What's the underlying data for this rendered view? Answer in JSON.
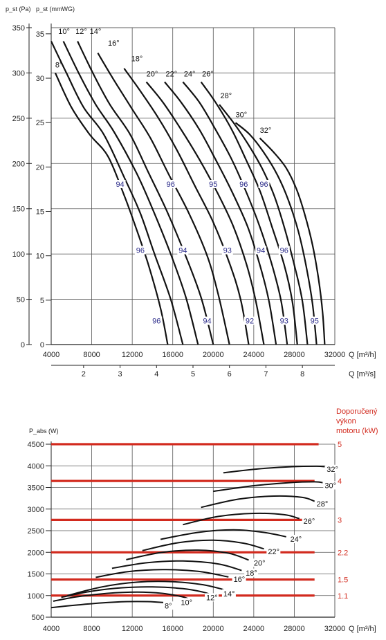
{
  "chart_data": [
    {
      "type": "line",
      "y_units": {
        "pa_label": "p_st (Pa)",
        "mmwg_label": "p_st (mmWG)"
      },
      "xlabel": "Q [m³/h]",
      "xlabel2": "Q [m³/s]",
      "x_ticks": [
        4000,
        8000,
        12000,
        16000,
        20000,
        24000,
        28000,
        32000
      ],
      "x2_ticks": [
        2,
        3,
        4,
        5,
        6,
        7,
        8
      ],
      "ylim_pa": [
        0,
        350
      ],
      "y_ticks_pa": [
        0,
        50,
        100,
        150,
        200,
        250,
        300,
        350
      ],
      "y_ticks_mmwg": [
        0,
        5,
        10,
        15,
        20,
        25,
        30,
        35
      ],
      "xlim": [
        4000,
        32000
      ],
      "grid": true,
      "series": [
        {
          "name": "8°",
          "x": [
            4400,
            6000,
            7800,
            9600,
            11200,
            12400,
            13600,
            14800,
            15500
          ],
          "y": [
            300,
            262,
            232,
            208,
            165,
            128,
            88,
            40,
            0
          ]
        },
        {
          "name": "10°",
          "x": [
            4000,
            5500,
            7200,
            9200,
            11200,
            12800,
            14200,
            15800,
            17000
          ],
          "y": [
            335,
            300,
            262,
            232,
            185,
            145,
            100,
            50,
            0
          ]
        },
        {
          "name": "12°",
          "x": [
            5200,
            6800,
            8400,
            10200,
            12400,
            14000,
            15800,
            17300,
            18500
          ],
          "y": [
            335,
            298,
            265,
            235,
            190,
            150,
            100,
            52,
            0
          ]
        },
        {
          "name": "14°",
          "x": [
            6600,
            8200,
            9800,
            11800,
            13600,
            15400,
            17200,
            18800,
            20000
          ],
          "y": [
            335,
            298,
            265,
            232,
            190,
            148,
            100,
            52,
            0
          ]
        },
        {
          "name": "16°",
          "x": [
            8600,
            10200,
            12000,
            13800,
            15600,
            17600,
            19400,
            20500,
            21600
          ],
          "y": [
            322,
            292,
            260,
            228,
            188,
            145,
            98,
            55,
            0
          ]
        },
        {
          "name": "18°",
          "x": [
            11200,
            12800,
            14600,
            16400,
            18200,
            20000,
            21600,
            22700,
            23500
          ],
          "y": [
            305,
            280,
            250,
            215,
            175,
            135,
            90,
            50,
            0
          ]
        },
        {
          "name": "20°",
          "x": [
            13400,
            15000,
            16800,
            18600,
            20400,
            22000,
            23300,
            24200,
            25000
          ],
          "y": [
            290,
            268,
            238,
            205,
            168,
            130,
            88,
            48,
            0
          ]
        },
        {
          "name": "22°",
          "x": [
            15200,
            16800,
            18600,
            20200,
            21800,
            23400,
            24600,
            25500,
            26200
          ],
          "y": [
            290,
            268,
            238,
            205,
            170,
            130,
            88,
            48,
            0
          ]
        },
        {
          "name": "24°",
          "x": [
            17000,
            18600,
            20200,
            21800,
            23200,
            24600,
            25800,
            26700,
            27300
          ],
          "y": [
            290,
            268,
            238,
            205,
            170,
            130,
            88,
            48,
            0
          ]
        },
        {
          "name": "26°",
          "x": [
            18800,
            20200,
            21800,
            23200,
            24600,
            25800,
            27000,
            27800,
            28300
          ],
          "y": [
            290,
            268,
            238,
            205,
            170,
            130,
            88,
            48,
            0
          ]
        },
        {
          "name": "28°",
          "x": [
            20600,
            22000,
            23400,
            24800,
            26000,
            27000,
            28000,
            28800,
            29300
          ],
          "y": [
            265,
            245,
            222,
            195,
            165,
            130,
            88,
            48,
            0
          ]
        },
        {
          "name": "30°",
          "x": [
            22200,
            23600,
            25000,
            26300,
            27400,
            28400,
            29200,
            29800,
            30200
          ],
          "y": [
            245,
            232,
            212,
            188,
            160,
            125,
            85,
            45,
            0
          ]
        },
        {
          "name": "32°",
          "x": [
            24600,
            26000,
            27200,
            28200,
            29000,
            29800,
            30400,
            30800,
            31000
          ],
          "y": [
            228,
            212,
            195,
            172,
            145,
            110,
            72,
            35,
            0
          ]
        }
      ],
      "curve_labels": [
        {
          "text": "8°",
          "x": 4400,
          "y": 306
        },
        {
          "text": "10°",
          "x": 4700,
          "y": 343
        },
        {
          "text": "12°",
          "x": 6400,
          "y": 343
        },
        {
          "text": "14°",
          "x": 7800,
          "y": 343
        },
        {
          "text": "16°",
          "x": 9600,
          "y": 330
        },
        {
          "text": "18°",
          "x": 11900,
          "y": 313
        },
        {
          "text": "20°",
          "x": 13400,
          "y": 296
        },
        {
          "text": "22°",
          "x": 15300,
          "y": 296
        },
        {
          "text": "24°",
          "x": 17100,
          "y": 296
        },
        {
          "text": "26°",
          "x": 18900,
          "y": 296
        },
        {
          "text": "28°",
          "x": 20700,
          "y": 272
        },
        {
          "text": "30°",
          "x": 22200,
          "y": 251
        },
        {
          "text": "32°",
          "x": 24600,
          "y": 234
        }
      ],
      "efficiency_labels": [
        {
          "text": "94",
          "x": 10800,
          "y": 175
        },
        {
          "text": "96",
          "x": 15800,
          "y": 175
        },
        {
          "text": "95",
          "x": 20000,
          "y": 175
        },
        {
          "text": "96",
          "x": 23000,
          "y": 175
        },
        {
          "text": "96",
          "x": 25000,
          "y": 175
        },
        {
          "text": "96",
          "x": 12800,
          "y": 102
        },
        {
          "text": "94",
          "x": 17000,
          "y": 102
        },
        {
          "text": "93",
          "x": 21400,
          "y": 102
        },
        {
          "text": "94",
          "x": 24700,
          "y": 102
        },
        {
          "text": "96",
          "x": 27000,
          "y": 102
        },
        {
          "text": "96",
          "x": 14400,
          "y": 24
        },
        {
          "text": "94",
          "x": 19400,
          "y": 24
        },
        {
          "text": "92",
          "x": 23600,
          "y": 24
        },
        {
          "text": "93",
          "x": 27000,
          "y": 24
        },
        {
          "text": "95",
          "x": 30000,
          "y": 24
        }
      ]
    },
    {
      "type": "line",
      "ylabel": "P_abs (W)",
      "xlabel": "Q [m³/h]",
      "ylim": [
        500,
        4500
      ],
      "y_ticks": [
        500,
        1000,
        1500,
        2000,
        2500,
        3000,
        3500,
        4000,
        4500
      ],
      "x_ticks": [
        4000,
        8000,
        12000,
        16000,
        20000,
        24000,
        28000,
        32000
      ],
      "xlim": [
        4000,
        32000
      ],
      "grid": true,
      "motor_title": "Doporučený výkon motoru (kW)",
      "motor_title_lines": [
        "Doporučený",
        "výkon",
        "motoru (kW)"
      ],
      "motor_levels": [
        {
          "label": "5",
          "y": 4500,
          "x0": 4000,
          "x1": 30400
        },
        {
          "label": "4",
          "y": 3650,
          "x0": 4000,
          "x1": 30000
        },
        {
          "label": "3",
          "y": 2750,
          "x0": 4000,
          "x1": 30000
        },
        {
          "label": "2.2",
          "y": 2000,
          "x0": 4000,
          "x1": 30000
        },
        {
          "label": "1.5",
          "y": 1370,
          "x0": 4000,
          "x1": 30000
        },
        {
          "label": "1.1",
          "y": 1000,
          "x0": 4000,
          "x1": 30000
        }
      ],
      "series": [
        {
          "name": "8°",
          "x": [
            4000,
            6500,
            9000,
            11500,
            13500,
            15000,
            15800
          ],
          "y": [
            720,
            780,
            830,
            860,
            860,
            840,
            820
          ]
        },
        {
          "name": "10°",
          "x": [
            4200,
            6500,
            9500,
            12500,
            15000,
            16800,
            17500
          ],
          "y": [
            870,
            970,
            1050,
            1080,
            1050,
            980,
            930
          ]
        },
        {
          "name": "12°",
          "x": [
            5000,
            8000,
            11000,
            14000,
            17000,
            19000,
            19800
          ],
          "y": [
            960,
            1100,
            1180,
            1200,
            1160,
            1080,
            1020
          ]
        },
        {
          "name": "14°",
          "x": [
            5600,
            9000,
            12500,
            16000,
            19000,
            21000
          ],
          "y": [
            1000,
            1200,
            1310,
            1320,
            1250,
            1140
          ]
        },
        {
          "name": "16°",
          "x": [
            8400,
            11500,
            15000,
            18500,
            21500
          ],
          "y": [
            1420,
            1550,
            1600,
            1560,
            1430
          ]
        },
        {
          "name": "18°",
          "x": [
            10000,
            13500,
            17000,
            20500,
            22800
          ],
          "y": [
            1630,
            1760,
            1800,
            1730,
            1580
          ]
        },
        {
          "name": "20°",
          "x": [
            11400,
            15000,
            18500,
            21500,
            23500
          ],
          "y": [
            1830,
            2000,
            2050,
            1980,
            1820
          ]
        },
        {
          "name": "22°",
          "x": [
            13000,
            16500,
            20000,
            23000,
            25000
          ],
          "y": [
            2040,
            2220,
            2280,
            2210,
            2080
          ]
        },
        {
          "name": "24°",
          "x": [
            14800,
            18500,
            22000,
            25000,
            27200
          ],
          "y": [
            2300,
            2460,
            2520,
            2460,
            2360
          ]
        },
        {
          "name": "26°",
          "x": [
            17000,
            20500,
            24000,
            27000,
            28500
          ],
          "y": [
            2640,
            2830,
            2900,
            2870,
            2780
          ]
        },
        {
          "name": "28°",
          "x": [
            18800,
            22500,
            26000,
            28800,
            30000
          ],
          "y": [
            3040,
            3230,
            3300,
            3270,
            3180
          ]
        },
        {
          "name": "30°",
          "x": [
            20000,
            24000,
            27500,
            30000,
            30800
          ],
          "y": [
            3410,
            3540,
            3610,
            3630,
            3610
          ]
        },
        {
          "name": "32°",
          "x": [
            21000,
            24500,
            27800,
            30200,
            31000
          ],
          "y": [
            3840,
            3930,
            3980,
            3990,
            3980
          ]
        }
      ],
      "curve_labels": [
        {
          "text": "8°",
          "x": 15200,
          "y": 720
        },
        {
          "text": "10°",
          "x": 16800,
          "y": 800
        },
        {
          "text": "12°",
          "x": 19300,
          "y": 910
        },
        {
          "text": "14°",
          "x": 21000,
          "y": 1000
        },
        {
          "text": "16°",
          "x": 22000,
          "y": 1330
        },
        {
          "text": "18°",
          "x": 23200,
          "y": 1480
        },
        {
          "text": "20°",
          "x": 24000,
          "y": 1710
        },
        {
          "text": "22°",
          "x": 25400,
          "y": 1970
        },
        {
          "text": "24°",
          "x": 27600,
          "y": 2260
        },
        {
          "text": "26°",
          "x": 28900,
          "y": 2680
        },
        {
          "text": "28°",
          "x": 30200,
          "y": 3080
        },
        {
          "text": "30°",
          "x": 31000,
          "y": 3500
        },
        {
          "text": "32°",
          "x": 31200,
          "y": 3880
        }
      ]
    }
  ]
}
